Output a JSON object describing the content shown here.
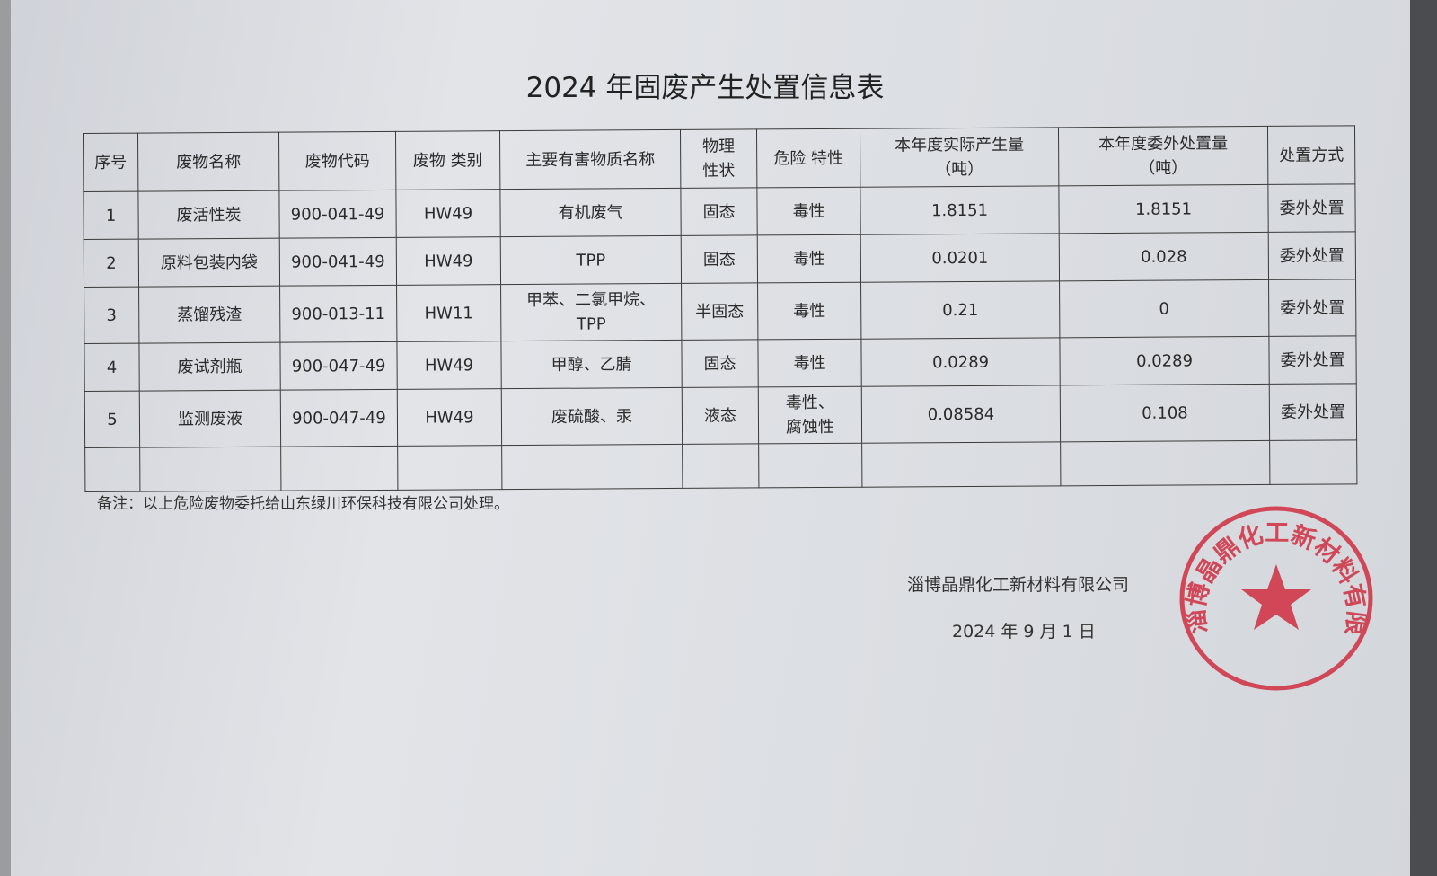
{
  "title": "2024 年固废产生处置信息表",
  "table": {
    "headers": [
      "序号",
      "废物名称",
      "废物代码",
      "废物 类别",
      "主要有害物质名称",
      "物理\n性状",
      "危险 特性",
      "本年度实际产生量\n（吨）",
      "本年度委外处置量\n（吨）",
      "处置方式"
    ],
    "rows": [
      [
        "1",
        "废活性炭",
        "900-041-49",
        "HW49",
        "有机废气",
        "固态",
        "毒性",
        "1.8151",
        "1.8151",
        "委外处置"
      ],
      [
        "2",
        "原料包装内袋",
        "900-041-49",
        "HW49",
        "TPP",
        "固态",
        "毒性",
        "0.0201",
        "0.028",
        "委外处置"
      ],
      [
        "3",
        "蒸馏残渣",
        "900-013-11",
        "HW11",
        "甲苯、二氯甲烷、\nTPP",
        "半固态",
        "毒性",
        "0.21",
        "0",
        "委外处置"
      ],
      [
        "4",
        "废试剂瓶",
        "900-047-49",
        "HW49",
        "甲醇、乙腈",
        "固态",
        "毒性",
        "0.0289",
        "0.0289",
        "委外处置"
      ],
      [
        "5",
        "监测废液",
        "900-047-49",
        "HW49",
        "废硫酸、汞",
        "液态",
        "毒性、\n腐蚀性",
        "0.08584",
        "0.108",
        "委外处置"
      ],
      [
        "",
        "",
        "",
        "",
        "",
        "",
        "",
        "",
        "",
        ""
      ]
    ]
  },
  "note": "备注：以上危险废物委托给山东绿川环保科技有限公司处理。",
  "company": "淄博晶鼎化工新材料有限公司",
  "date": "2024 年 9 月 1 日",
  "stamp": {
    "text": "淄博晶鼎化工新材料有限公司",
    "color": "#d0283a"
  }
}
